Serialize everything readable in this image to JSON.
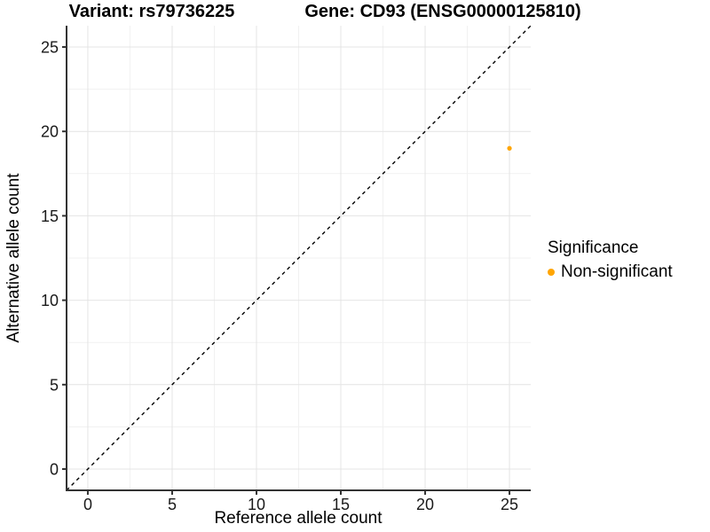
{
  "header": {
    "variant_title": "Variant: rs79736225",
    "gene_title": "Gene: CD93 (ENSG00000125810)"
  },
  "legend": {
    "title": "Significance",
    "items": [
      {
        "label": "Non-significant",
        "color": "#FFA500"
      }
    ]
  },
  "chart_data": {
    "type": "scatter",
    "title": "Variant: rs79736225 — Gene: CD93 (ENSG00000125810)",
    "xlabel": "Reference allele count",
    "ylabel": "Alternative allele count",
    "x_ticks": [
      0,
      5,
      10,
      15,
      20,
      25
    ],
    "y_ticks": [
      0,
      5,
      10,
      15,
      20,
      25
    ],
    "xlim": [
      -1.26,
      26.26
    ],
    "ylim": [
      -1.26,
      26.26
    ],
    "minor_grid_ticks": [
      2.5,
      7.5,
      12.5,
      17.5,
      22.5
    ],
    "grid": "on",
    "legend_position": "right",
    "series": [
      {
        "name": "Non-significant",
        "color": "#FFA500",
        "points": [
          {
            "x": 25,
            "y": 19
          }
        ]
      }
    ],
    "reference_line": {
      "type": "identity",
      "equation": "y = x",
      "style": "dashed",
      "color": "#000000",
      "from": [
        -1.26,
        -1.26
      ],
      "to": [
        26.26,
        26.26
      ]
    }
  },
  "colors": {
    "background": "#FFFFFF",
    "axis_line": "#333333",
    "grid_major": "#E4E4E4",
    "grid_minor": "#F1F1F1",
    "tick_text": "#1a1a1a",
    "point": "#FFA500"
  }
}
